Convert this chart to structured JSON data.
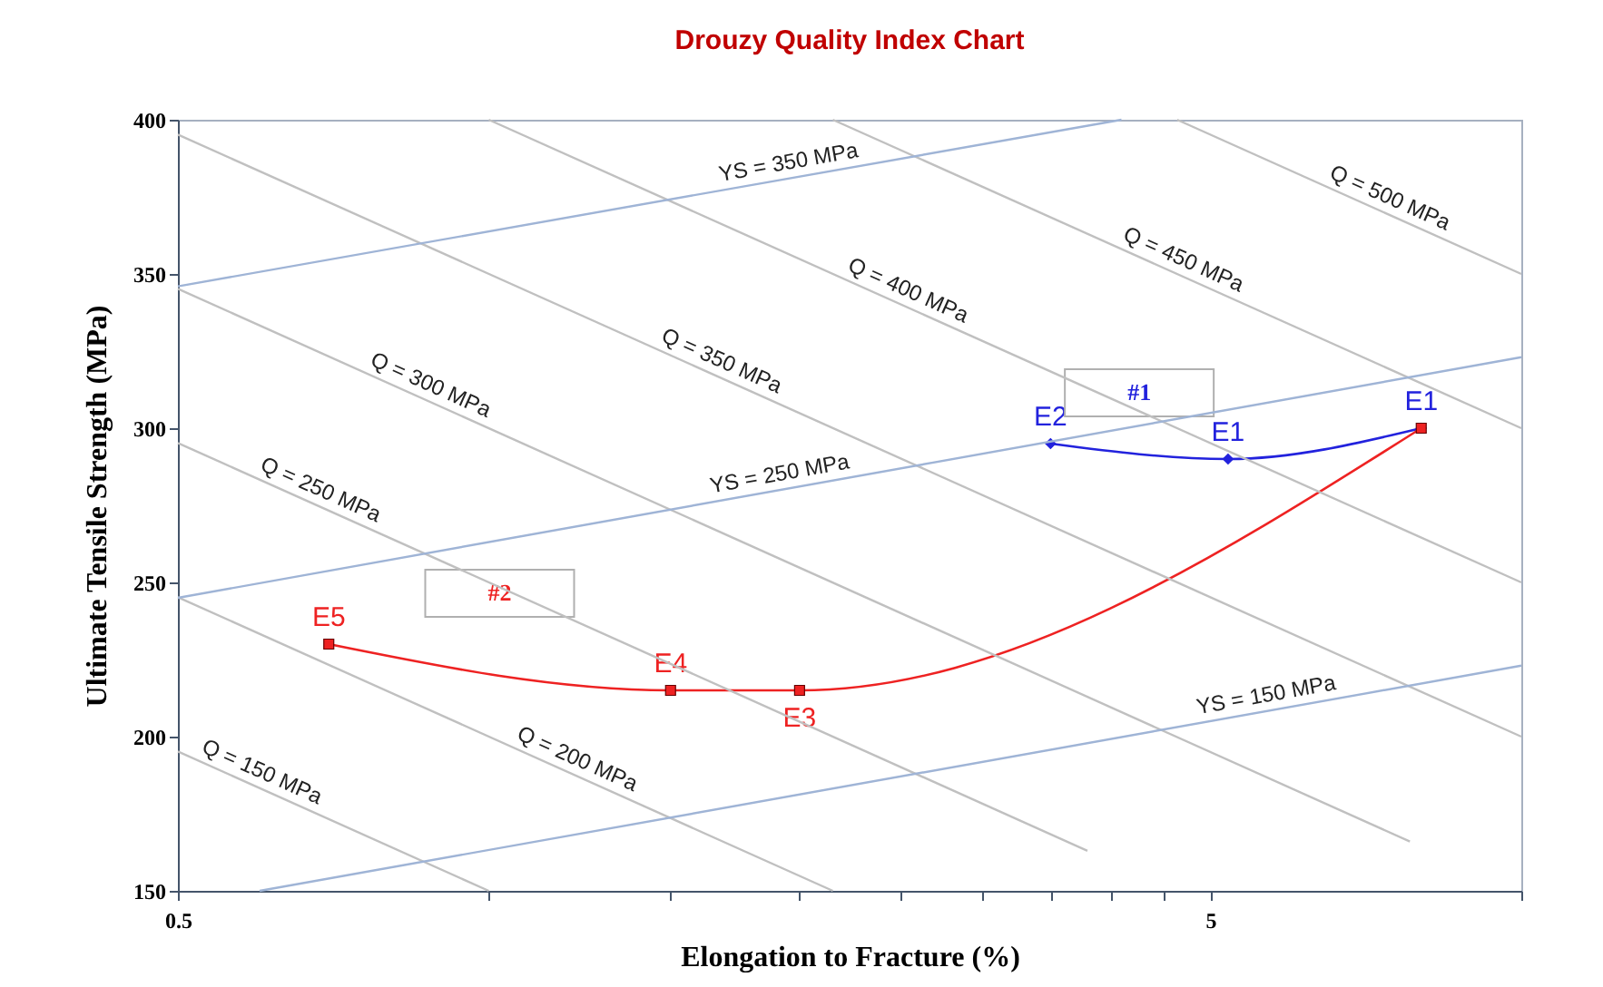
{
  "chart_data": {
    "type": "line",
    "title": "Drouzy Quality Index Chart",
    "xlabel": "Elongation to Fracture (%)",
    "ylabel": "Ultimate Tensile Strength (MPa)",
    "log": "x",
    "xlim": [
      0.5,
      10
    ],
    "ylim": [
      150,
      400
    ],
    "xticks": [
      0.5,
      {
        "value": 1,
        "label": null
      },
      {
        "value": 1.5,
        "label": null
      },
      {
        "value": 2,
        "label": null
      },
      {
        "value": 2.5,
        "label": null
      },
      {
        "value": 3,
        "label": null
      },
      {
        "value": 3.5,
        "label": null
      },
      {
        "value": 4,
        "label": null
      },
      {
        "value": 4.5,
        "label": null
      },
      5,
      {
        "value": 10,
        "label": null
      }
    ],
    "yticks": [
      150,
      200,
      250,
      300,
      350,
      400
    ],
    "grid": false,
    "line_style": "solid",
    "series": [
      {
        "name": "#1",
        "color": "#2222dd",
        "marker": "diamond",
        "x": [
          3.5,
          5.2,
          8
        ],
        "values": [
          295,
          290,
          300
        ],
        "value_labels": [
          "E2",
          "E1",
          "E1"
        ]
      },
      {
        "name": "#2",
        "color": "#ee2222",
        "marker": "square",
        "x": [
          0.7,
          1.5,
          2,
          8
        ],
        "values": [
          230,
          215,
          215,
          300
        ],
        "value_labels": [
          "E5",
          "E4",
          "E3",
          null
        ]
      },
      {
        "name": "Q = 150 MPa",
        "color": "#c0c0c0",
        "marker": "none",
        "x": [
          0.5,
          1
        ],
        "values": [
          195.2,
          150
        ]
      },
      {
        "name": "Q = 200 MPa",
        "color": "#c0c0c0",
        "marker": "none",
        "x": [
          0.5,
          2.154
        ],
        "values": [
          245.2,
          150
        ]
      },
      {
        "name": "Q = 250 MPa",
        "color": "#c0c0c0",
        "marker": "none",
        "x": [
          0.5,
          3.8
        ],
        "values": [
          295.2,
          163
        ]
      },
      {
        "name": "Q = 300 MPa",
        "color": "#c0c0c0",
        "marker": "none",
        "x": [
          0.5,
          7.8
        ],
        "values": [
          345.2,
          166
        ]
      },
      {
        "name": "Q = 350 MPa",
        "color": "#c0c0c0",
        "marker": "none",
        "x": [
          0.5,
          10
        ],
        "values": [
          395.2,
          200
        ]
      },
      {
        "name": "Q = 400 MPa",
        "color": "#c0c0c0",
        "marker": "none",
        "x": [
          1,
          10
        ],
        "values": [
          400,
          250
        ]
      },
      {
        "name": "Q = 450 MPa",
        "color": "#c0c0c0",
        "marker": "none",
        "x": [
          2.154,
          10
        ],
        "values": [
          400,
          300
        ]
      },
      {
        "name": "Q = 500 MPa",
        "color": "#c0c0c0",
        "marker": "none",
        "x": [
          4.642,
          10
        ],
        "values": [
          400,
          350
        ]
      },
      {
        "name": "YS = 350 MPa",
        "color": "#9fb4d6",
        "marker": "none",
        "x": [
          0.5,
          4.1
        ],
        "values": [
          346,
          400
        ]
      },
      {
        "name": "YS = 250 MPa",
        "color": "#9fb4d6",
        "marker": "none",
        "x": [
          0.5,
          10
        ],
        "values": [
          245,
          323
        ]
      },
      {
        "name": "YS = 150 MPa",
        "color": "#9fb4d6",
        "marker": "none",
        "x": [
          0.6,
          10
        ],
        "values": [
          150,
          223
        ]
      }
    ]
  }
}
